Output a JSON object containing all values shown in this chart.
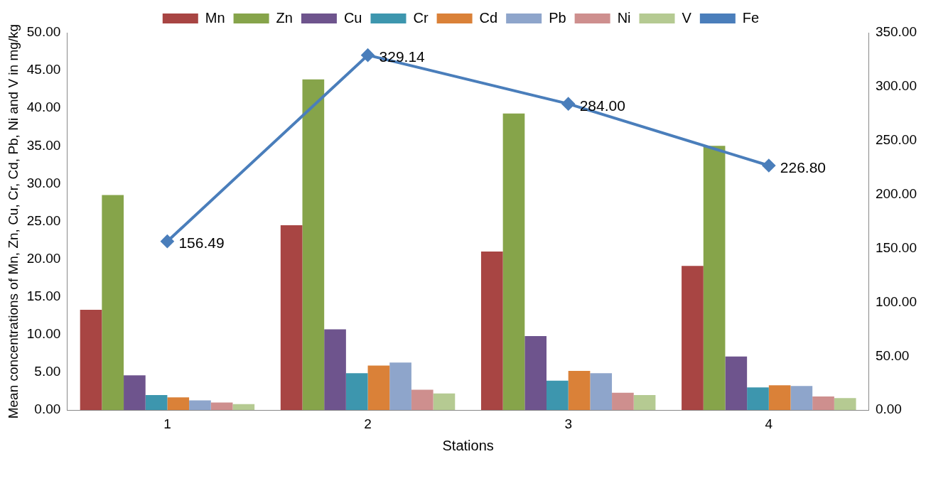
{
  "chart_data": {
    "type": "bar",
    "xlabel": "Stations",
    "ylabel": "Mean concentrations of Mn, Zn, Cu, Cr, Cd, Pb, Ni and V in mg/kg",
    "categories": [
      "1",
      "2",
      "3",
      "4"
    ],
    "legend": "top",
    "grid": false,
    "series": [
      {
        "name": "Mn",
        "color": "#a84543",
        "values": [
          13.3,
          24.5,
          21.0,
          19.1
        ]
      },
      {
        "name": "Zn",
        "color": "#86a44a",
        "values": [
          28.5,
          43.8,
          39.3,
          35.0
        ]
      },
      {
        "name": "Cu",
        "color": "#6e548d",
        "values": [
          4.6,
          10.7,
          9.8,
          7.1
        ]
      },
      {
        "name": "Cr",
        "color": "#3d96ae",
        "values": [
          2.0,
          4.9,
          3.9,
          3.0
        ]
      },
      {
        "name": "Cd",
        "color": "#da8138",
        "values": [
          1.7,
          5.9,
          5.2,
          3.3
        ]
      },
      {
        "name": "Pb",
        "color": "#8ea5cb",
        "values": [
          1.3,
          6.3,
          4.9,
          3.2
        ]
      },
      {
        "name": "Ni",
        "color": "#ce8f8e",
        "values": [
          1.0,
          2.7,
          2.3,
          1.8
        ]
      },
      {
        "name": "V",
        "color": "#b5ca92",
        "values": [
          0.8,
          2.2,
          2.0,
          1.6
        ]
      },
      {
        "name": "Fe",
        "type": "line",
        "axis": "y2",
        "color": "#4a7ebb",
        "marker": "diamond",
        "values": [
          156.49,
          329.14,
          284.0,
          226.8
        ],
        "value_labels": [
          "156.49",
          "329.14",
          "284.00",
          "226.80"
        ]
      }
    ],
    "ylim": [
      0,
      50
    ],
    "yticks": [
      {
        "value": 0,
        "label": "0.00"
      },
      {
        "value": 5,
        "label": "5.00"
      },
      {
        "value": 10,
        "label": "10.00"
      },
      {
        "value": 15,
        "label": "15.00"
      },
      {
        "value": 20,
        "label": "20.00"
      },
      {
        "value": 25,
        "label": "25.00"
      },
      {
        "value": 30,
        "label": "30.00"
      },
      {
        "value": 35,
        "label": "35.00"
      },
      {
        "value": 40,
        "label": "40.00"
      },
      {
        "value": 45,
        "label": "45.00"
      },
      {
        "value": 50,
        "label": "50.00"
      }
    ],
    "y2lim": [
      0,
      350
    ],
    "y2ticks": [
      {
        "value": 0,
        "label": "0.00"
      },
      {
        "value": 50,
        "label": "50.00"
      },
      {
        "value": 100,
        "label": "100.00"
      },
      {
        "value": 150,
        "label": "150.00"
      },
      {
        "value": 200,
        "label": "200.00"
      },
      {
        "value": 250,
        "label": "250.00"
      },
      {
        "value": 300,
        "label": "300.00"
      },
      {
        "value": 350,
        "label": "350.00"
      }
    ]
  }
}
